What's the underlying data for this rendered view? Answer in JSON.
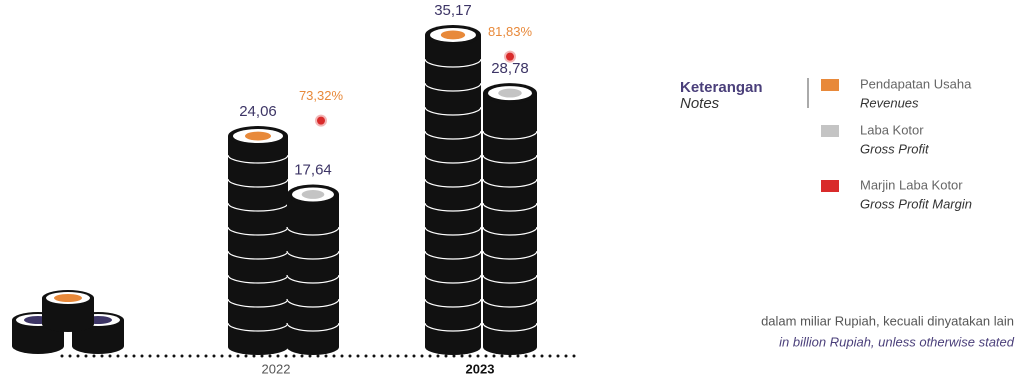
{
  "chart_data": {
    "type": "bar",
    "categories": [
      "2022",
      "2023"
    ],
    "series": [
      {
        "name": "Pendapatan Usaha",
        "name_en": "Revenues",
        "color": "#e8893a",
        "values": [
          24.06,
          35.17
        ],
        "value_labels": [
          "24,06",
          "35,17"
        ]
      },
      {
        "name": "Laba Kotor",
        "name_en": "Gross Profit",
        "color": "#c4c4c4",
        "values": [
          17.64,
          28.78
        ],
        "value_labels": [
          "17,64",
          "28,78"
        ]
      },
      {
        "name": "Marjin Laba Kotor",
        "name_en": "Gross Profit Margin",
        "color": "#d92b2b",
        "values": [
          73.32,
          81.83
        ],
        "value_labels": [
          "73,32%",
          "81,83%"
        ]
      }
    ],
    "legend_title": "Keterangan",
    "legend_title_en": "Notes",
    "note": "dalam miliar Rupiah, kecuali dinyatakan lain",
    "note_en": "in billion Rupiah, unless otherwise stated"
  }
}
